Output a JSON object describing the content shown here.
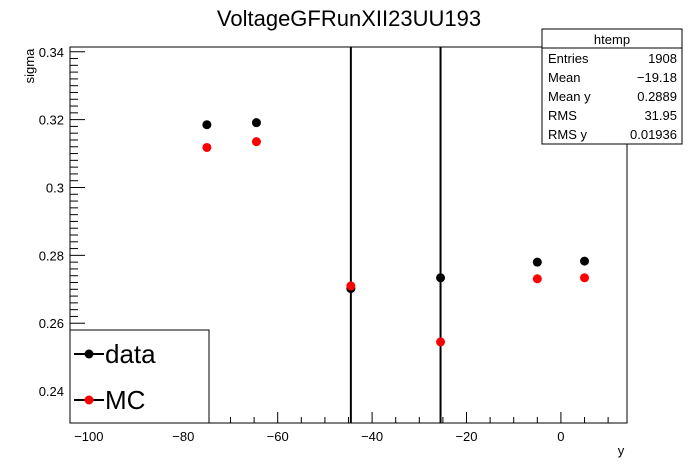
{
  "chart_data": {
    "type": "scatter",
    "title": "VoltageGFRunXII23UU193",
    "xlabel": "y",
    "ylabel": "sigma",
    "xlim": [
      -104,
      14
    ],
    "ylim": [
      0.2306,
      0.3414
    ],
    "xticks": [
      -100,
      -80,
      -60,
      -40,
      -20,
      0
    ],
    "xtick_labels": [
      "−100",
      "−80",
      "−60",
      "−40",
      "−20",
      "0"
    ],
    "yticks": [
      0.24,
      0.26,
      0.28,
      0.3,
      0.32,
      0.34
    ],
    "ytick_labels": [
      "0.24",
      "0.26",
      "0.28",
      "0.3",
      "0.32",
      "0.34"
    ],
    "vlines": [
      -44.5,
      -25.5
    ],
    "grid": false,
    "legend_position": "bottom-left",
    "series": [
      {
        "name": "data",
        "color": "#000000",
        "x": [
          -75,
          -64.5,
          -44.5,
          -25.5,
          -5,
          5
        ],
        "y": [
          0.3185,
          0.3191,
          0.2702,
          0.2734,
          0.278,
          0.2783
        ]
      },
      {
        "name": "MC",
        "color": "#ff0000",
        "x": [
          -75,
          -64.5,
          -44.5,
          -25.5,
          -5,
          5
        ],
        "y": [
          0.3118,
          0.3135,
          0.271,
          0.2545,
          0.2731,
          0.2734
        ]
      }
    ],
    "stats_box": {
      "title": "htemp",
      "rows": [
        {
          "label": "Entries",
          "value": "1908"
        },
        {
          "label": "Mean",
          "value": "−19.18"
        },
        {
          "label": "Mean y",
          "value": "0.2889"
        },
        {
          "label": "RMS",
          "value": "31.95"
        },
        {
          "label": "RMS y",
          "value": "0.01936"
        }
      ]
    }
  }
}
